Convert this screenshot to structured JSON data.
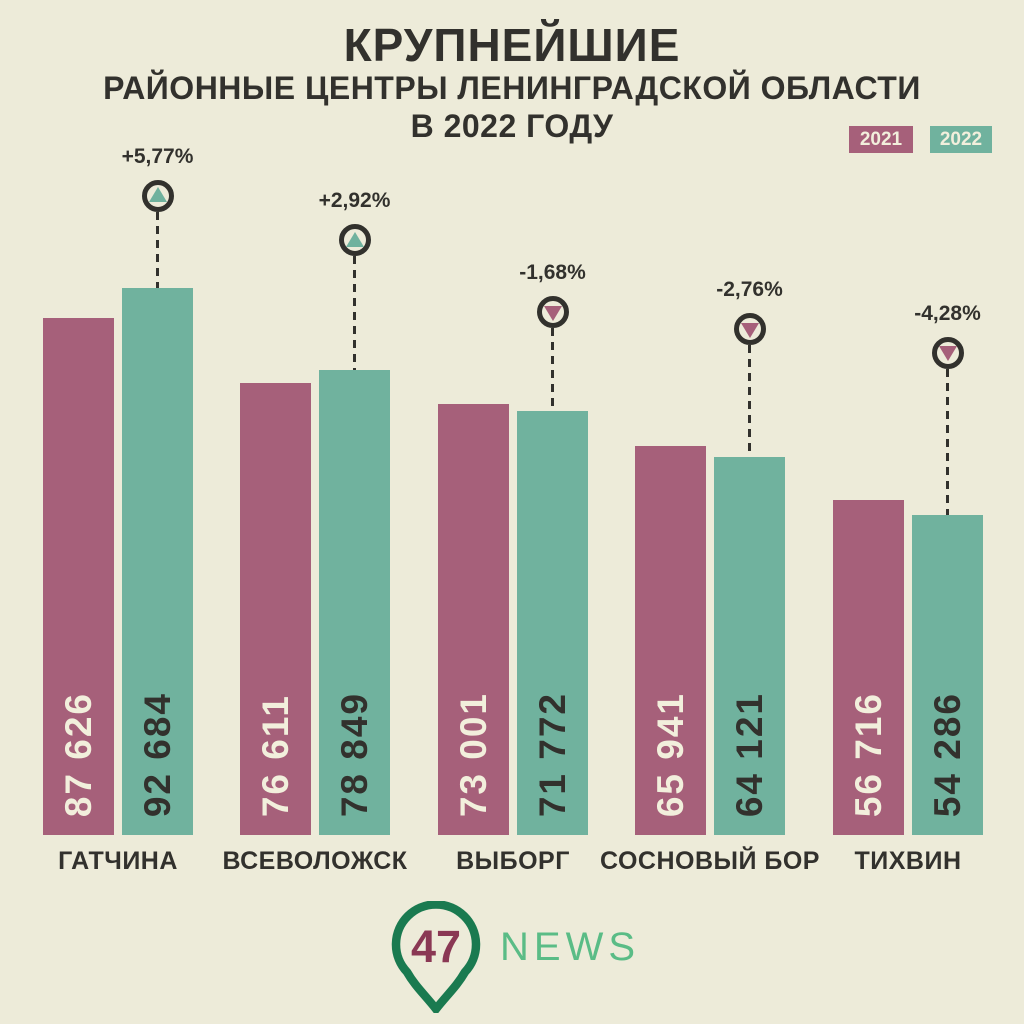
{
  "title": {
    "line1": "КРУПНЕЙШИЕ",
    "line2": "РАЙОННЫЕ ЦЕНТРЫ ЛЕНИНГРАДСКОЙ ОБЛАСТИ",
    "line3": "В 2022 ГОДУ"
  },
  "legend": {
    "position": "top-right",
    "items": [
      {
        "label": "2021",
        "color": "#A6607A"
      },
      {
        "label": "2022",
        "color": "#70B29E"
      }
    ]
  },
  "chart_data": {
    "type": "bar",
    "categories": [
      "ГАТЧИНА",
      "ВСЕВОЛОЖСК",
      "ВЫБОРГ",
      "СОСНОВЫЙ БОР",
      "ТИХВИН"
    ],
    "series": [
      {
        "name": "2021",
        "color": "#A6607A",
        "values": [
          87626,
          76611,
          73001,
          65941,
          56716
        ],
        "value_labels": [
          "87 626",
          "76 611",
          "73 001",
          "65 941",
          "56 716"
        ]
      },
      {
        "name": "2022",
        "color": "#70B29E",
        "values": [
          92684,
          78849,
          71772,
          64121,
          54286
        ],
        "value_labels": [
          "92 684",
          "78 849",
          "71 772",
          "64 121",
          "54 286"
        ]
      }
    ],
    "change_percent": [
      5.77,
      2.92,
      -1.68,
      -2.76,
      -4.28
    ],
    "change_labels": [
      "+5,77%",
      "+2,92%",
      "-1,68%",
      "-2,76%",
      "-4,28%"
    ],
    "ylim": [
      0,
      92684
    ],
    "grid": false,
    "legend_position": "top-right",
    "value_label_placement": "inside-bottom-rotated",
    "marker_style": "circle-with-triangle-on-dashed-stem"
  },
  "footer": {
    "logo_number": "47",
    "logo_text": "NEWS"
  },
  "colors": {
    "background": "#EDEBD9",
    "bar_2021": "#A6607A",
    "bar_2022": "#70B29E",
    "text_dark": "#32312D",
    "text_cream": "#F2EFDC",
    "logo_pin_green": "#1A7A50",
    "logo_text_green": "#5ABC86",
    "logo_number_maroon": "#8A3854"
  }
}
